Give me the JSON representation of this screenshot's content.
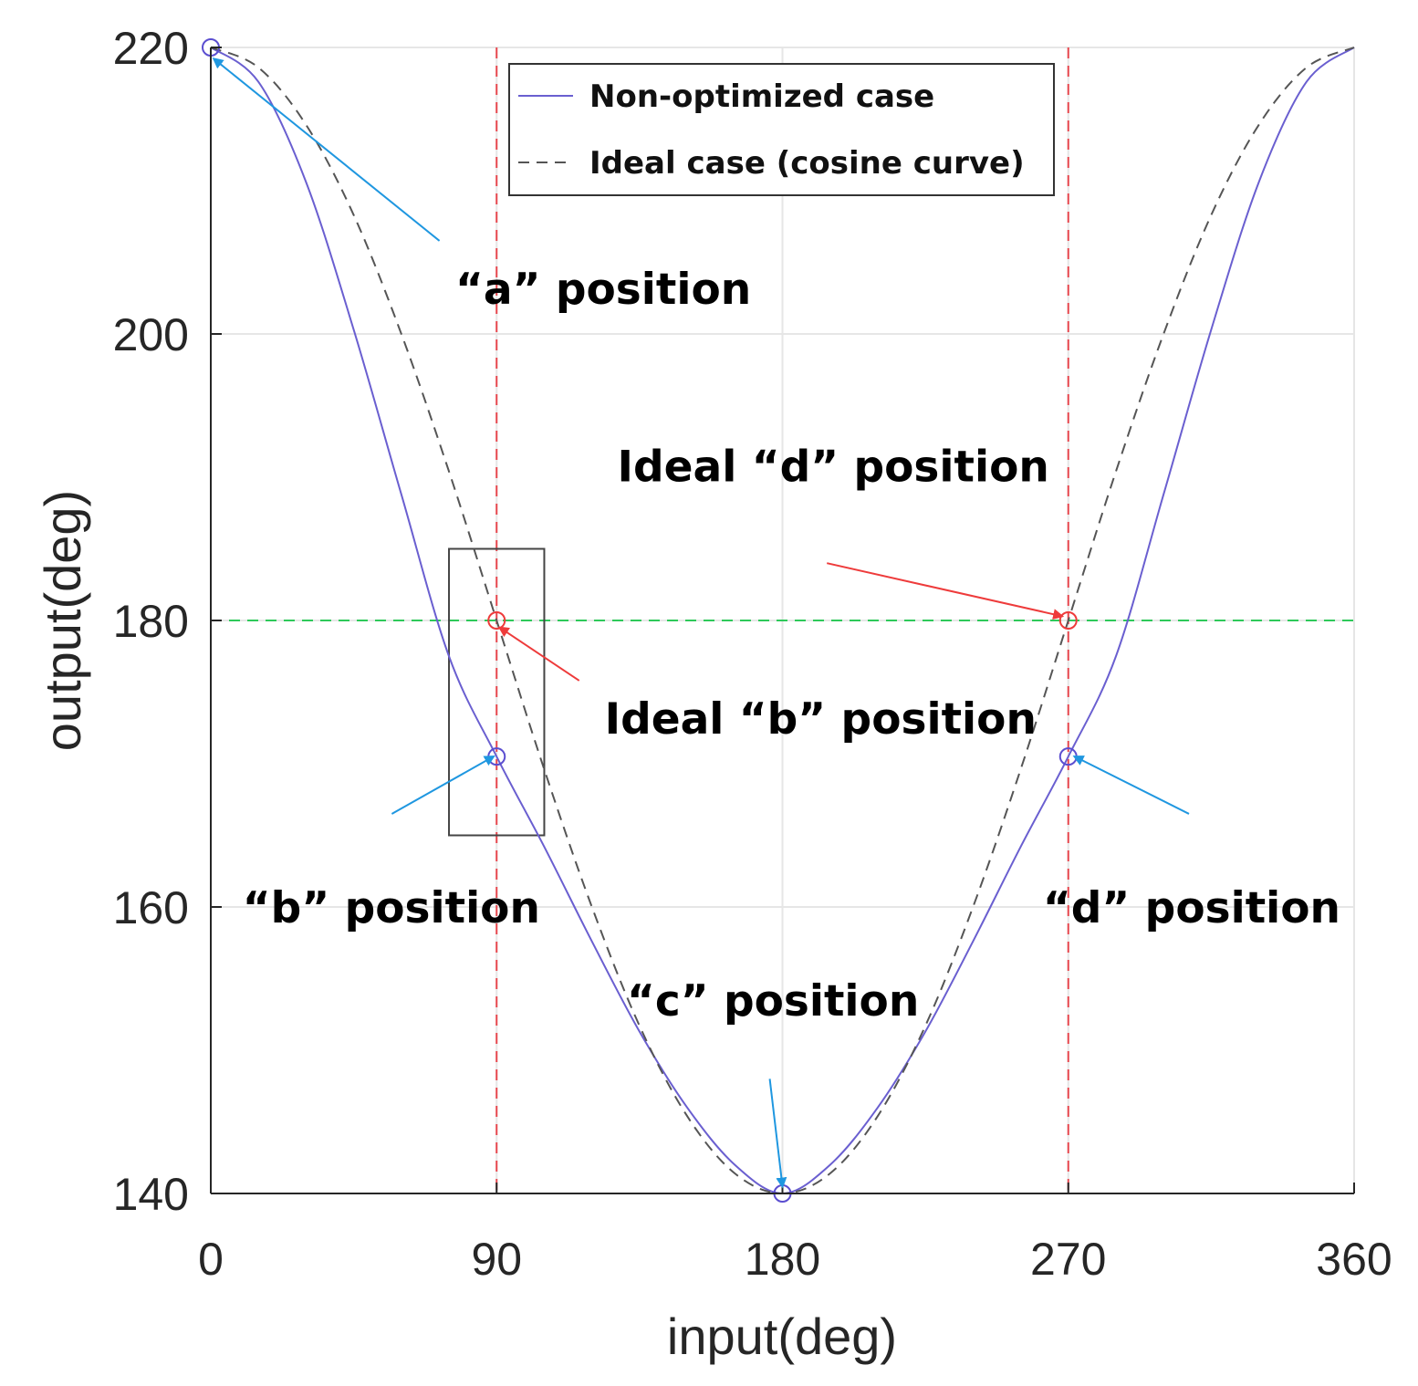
{
  "chart_data": {
    "type": "line",
    "title": "",
    "xlabel": "input(deg)",
    "ylabel": "output(deg)",
    "xlim": [
      0,
      360
    ],
    "ylim": [
      140,
      220
    ],
    "xticks": [
      0,
      90,
      180,
      270,
      360
    ],
    "yticks": [
      140,
      160,
      180,
      200,
      220
    ],
    "grid": true,
    "legend_position": "top-center",
    "series": [
      {
        "name": "Non-optimized case",
        "style": "solid",
        "color": "#6a5fd0",
        "x": [
          0,
          15,
          30,
          45,
          60,
          75,
          90,
          105,
          120,
          135,
          150,
          165,
          180,
          195,
          210,
          225,
          240,
          255,
          270,
          285,
          300,
          315,
          330,
          345,
          360
        ],
        "y": [
          220,
          217.6,
          210.6,
          200.3,
          188.8,
          177.5,
          170.5,
          164.2,
          157.6,
          151.3,
          146,
          142,
          140,
          142,
          146,
          151.3,
          157.6,
          164.2,
          170.5,
          177.5,
          188.8,
          200.3,
          210.6,
          217.6,
          220
        ]
      },
      {
        "name": "Ideal case (cosine curve)",
        "style": "dashed",
        "color": "#555555",
        "x": [
          0,
          15,
          30,
          45,
          60,
          75,
          90,
          105,
          120,
          135,
          150,
          165,
          180,
          195,
          210,
          225,
          240,
          255,
          270,
          285,
          300,
          315,
          330,
          345,
          360
        ],
        "y": [
          220,
          218.6,
          214.6,
          208.3,
          200,
          190.4,
          180,
          169.6,
          160,
          151.7,
          145.4,
          141.4,
          140,
          141.4,
          145.4,
          151.7,
          160,
          169.6,
          180,
          190.4,
          200,
          208.3,
          214.6,
          218.6,
          220
        ]
      }
    ],
    "reference_lines": [
      {
        "orientation": "vertical",
        "value": 90,
        "color": "#e8474e"
      },
      {
        "orientation": "vertical",
        "value": 270,
        "color": "#e8474e"
      },
      {
        "orientation": "horizontal",
        "value": 180,
        "color": "#2ec95a"
      }
    ],
    "markers": [
      {
        "x": 0,
        "y": 220,
        "color": "#5b4ed0"
      },
      {
        "x": 90,
        "y": 170.5,
        "color": "#5b4ed0"
      },
      {
        "x": 180,
        "y": 140,
        "color": "#5b4ed0"
      },
      {
        "x": 270,
        "y": 170.5,
        "color": "#5b4ed0"
      },
      {
        "x": 90,
        "y": 180,
        "color": "#ee3b3b"
      },
      {
        "x": 270,
        "y": 180,
        "color": "#ee3b3b"
      }
    ],
    "highlight_box": {
      "x0": 75,
      "x1": 105,
      "y0": 165,
      "y1": 185
    },
    "annotations": [
      {
        "text": "“a” position",
        "tx": 77,
        "ty": 203.2,
        "ax": 72,
        "ay": 206.5,
        "hx": 1,
        "hy": 219.2,
        "color": "#1f97e0"
      },
      {
        "text": "Ideal “d” position",
        "tx": 128,
        "ty": 190.8,
        "ax": 194,
        "ay": 184,
        "hx": 268,
        "hy": 180.3,
        "color": "#ee3b3b"
      },
      {
        "text": "Ideal “b” position",
        "tx": 124,
        "ty": 173.2,
        "ax": 116,
        "ay": 175.8,
        "hx": 91,
        "hy": 179.5,
        "color": "#ee3b3b"
      },
      {
        "text": "“b” position",
        "tx": 10,
        "ty": 160,
        "ax": 57,
        "ay": 166.5,
        "hx": 89,
        "hy": 170.5,
        "color": "#1f97e0"
      },
      {
        "text": "“d” position",
        "tx": 262,
        "ty": 160,
        "ax": 308,
        "ay": 166.5,
        "hx": 272,
        "hy": 170.5,
        "color": "#1f97e0"
      },
      {
        "text": "“c” position",
        "tx": 131,
        "ty": 153.5,
        "ax": 176,
        "ay": 148,
        "hx": 180,
        "hy": 140.5,
        "color": "#1f97e0"
      }
    ]
  }
}
